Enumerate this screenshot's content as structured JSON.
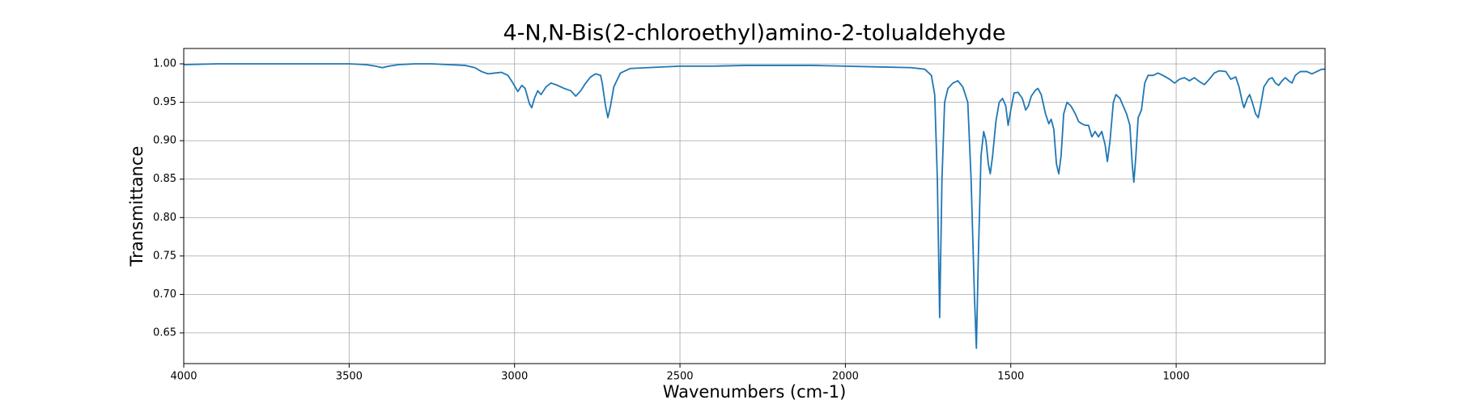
{
  "chart_data": {
    "type": "line",
    "title": "4-N,N-Bis(2-chloroethyl)amino-2-tolualdehyde",
    "x_label": "Wavenumbers (cm-1)",
    "y_label": "Transmittance",
    "x": [
      4000,
      3900,
      3800,
      3700,
      3600,
      3500,
      3450,
      3420,
      3400,
      3380,
      3350,
      3300,
      3250,
      3200,
      3150,
      3120,
      3100,
      3080,
      3060,
      3040,
      3020,
      3005,
      2990,
      2978,
      2968,
      2955,
      2948,
      2940,
      2930,
      2920,
      2905,
      2890,
      2870,
      2850,
      2830,
      2815,
      2800,
      2785,
      2770,
      2755,
      2740,
      2735,
      2725,
      2718,
      2710,
      2700,
      2680,
      2650,
      2600,
      2500,
      2400,
      2300,
      2200,
      2100,
      2000,
      1900,
      1800,
      1760,
      1740,
      1730,
      1722,
      1715,
      1708,
      1700,
      1690,
      1675,
      1660,
      1645,
      1630,
      1620,
      1610,
      1604,
      1598,
      1590,
      1582,
      1575,
      1568,
      1562,
      1555,
      1545,
      1535,
      1525,
      1515,
      1508,
      1500,
      1490,
      1478,
      1465,
      1455,
      1447,
      1438,
      1425,
      1418,
      1408,
      1395,
      1385,
      1378,
      1370,
      1362,
      1355,
      1348,
      1340,
      1330,
      1318,
      1305,
      1295,
      1285,
      1275,
      1265,
      1255,
      1245,
      1235,
      1225,
      1215,
      1208,
      1200,
      1190,
      1182,
      1170,
      1160,
      1150,
      1140,
      1133,
      1128,
      1122,
      1115,
      1105,
      1095,
      1085,
      1070,
      1055,
      1040,
      1020,
      1005,
      990,
      975,
      960,
      945,
      930,
      915,
      900,
      885,
      870,
      850,
      835,
      820,
      810,
      800,
      795,
      785,
      778,
      770,
      760,
      752,
      745,
      735,
      720,
      710,
      700,
      690,
      680,
      670,
      660,
      650,
      640,
      625,
      605,
      590,
      575,
      560,
      550
    ],
    "values": [
      0.999,
      1.0,
      1.0,
      1.0,
      1.0,
      1.0,
      0.999,
      0.997,
      0.995,
      0.997,
      0.999,
      1.0,
      1.0,
      0.999,
      0.998,
      0.995,
      0.99,
      0.987,
      0.988,
      0.989,
      0.985,
      0.975,
      0.964,
      0.972,
      0.968,
      0.948,
      0.943,
      0.955,
      0.965,
      0.96,
      0.97,
      0.975,
      0.972,
      0.968,
      0.965,
      0.958,
      0.965,
      0.975,
      0.983,
      0.987,
      0.985,
      0.975,
      0.945,
      0.93,
      0.945,
      0.97,
      0.988,
      0.994,
      0.995,
      0.997,
      0.997,
      0.998,
      0.998,
      0.998,
      0.997,
      0.996,
      0.995,
      0.993,
      0.985,
      0.96,
      0.85,
      0.67,
      0.85,
      0.95,
      0.968,
      0.975,
      0.978,
      0.97,
      0.95,
      0.85,
      0.7,
      0.63,
      0.75,
      0.88,
      0.912,
      0.9,
      0.87,
      0.857,
      0.88,
      0.925,
      0.95,
      0.955,
      0.945,
      0.92,
      0.94,
      0.962,
      0.963,
      0.955,
      0.94,
      0.945,
      0.958,
      0.966,
      0.968,
      0.96,
      0.935,
      0.922,
      0.928,
      0.915,
      0.87,
      0.857,
      0.88,
      0.935,
      0.95,
      0.945,
      0.935,
      0.925,
      0.922,
      0.92,
      0.92,
      0.905,
      0.912,
      0.905,
      0.912,
      0.895,
      0.873,
      0.9,
      0.95,
      0.96,
      0.955,
      0.945,
      0.935,
      0.92,
      0.87,
      0.846,
      0.88,
      0.93,
      0.94,
      0.975,
      0.985,
      0.985,
      0.988,
      0.985,
      0.98,
      0.975,
      0.98,
      0.982,
      0.978,
      0.982,
      0.977,
      0.973,
      0.98,
      0.988,
      0.991,
      0.99,
      0.98,
      0.983,
      0.97,
      0.95,
      0.943,
      0.955,
      0.96,
      0.95,
      0.935,
      0.93,
      0.945,
      0.97,
      0.98,
      0.982,
      0.975,
      0.972,
      0.978,
      0.982,
      0.978,
      0.975,
      0.985,
      0.99,
      0.99,
      0.987,
      0.99,
      0.993,
      0.993
    ],
    "color": "#1f77b4",
    "xlim": [
      4000,
      550
    ],
    "xticks": [
      4000,
      3500,
      3000,
      2500,
      2000,
      1500,
      1000
    ],
    "ylim": [
      0.61,
      1.02
    ],
    "yticks": [
      0.65,
      {
        "value": 0.7,
        "label": "0.70"
      },
      0.75,
      {
        "value": 0.8,
        "label": "0.80"
      },
      0.85,
      {
        "value": 0.9,
        "label": "0.90"
      },
      0.95,
      {
        "value": 1.0,
        "label": "1.00"
      }
    ],
    "grid": true
  }
}
